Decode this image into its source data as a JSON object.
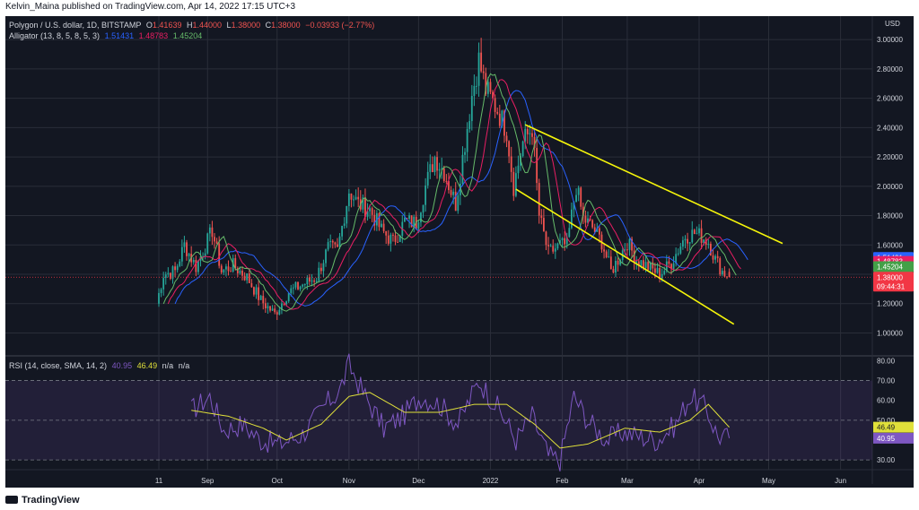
{
  "header": {
    "published": "Kelvin_Maina published on TradingView.com, Apr 14, 2022 17:15 UTC+3"
  },
  "legend": {
    "symbol": "Polygon / U.S. dollar, 1D, BITSTAMP",
    "o_label": "O",
    "o": "1.41639",
    "h_label": "H",
    "h": "1.44000",
    "l_label": "L",
    "l": "1.38000",
    "c_label": "C",
    "c": "1.38000",
    "chg": "−0.03933 (−2.77%)",
    "alligator_label": "Alligator (13, 8, 5, 8, 5, 3)",
    "jaw": "1.51431",
    "teeth": "1.48783",
    "lips": "1.45204"
  },
  "rsi_legend": {
    "label": "RSI (14, close, SMA, 14, 2)",
    "rsi": "40.95",
    "sma": "46.49",
    "na1": "n/a",
    "na2": "n/a"
  },
  "currency": "USD",
  "timer": "09:44:31",
  "footer": {
    "logo_text": "TradingView"
  },
  "colors": {
    "bg": "#131722",
    "up": "#26a69a",
    "down": "#ef5350",
    "jaw": "#2962ff",
    "teeth": "#e91e63",
    "lips": "#66bb6a",
    "rsi": "#7e57c2",
    "rsi_ma": "#e0e03a",
    "channel": "#f5f50a",
    "jaw_badge": "#2962ff",
    "teeth_badge": "#e91e63",
    "lips_badge": "#43a047",
    "price_badge": "#f23645"
  },
  "chart_data": [
    {
      "type": "candlestick",
      "title": "Polygon / U.S. dollar, 1D, BITSTAMP",
      "y_ticks": [
        1.0,
        1.2,
        1.4,
        1.6,
        1.8,
        2.0,
        2.2,
        2.4,
        2.6,
        2.8,
        3.0
      ],
      "y_tick_labels": [
        "1.00000",
        "1.20000",
        "1.40000",
        "1.60000",
        "1.80000",
        "2.00000",
        "2.20000",
        "2.40000",
        "2.60000",
        "2.80000",
        "3.00000"
      ],
      "ylim": [
        0.85,
        3.16
      ],
      "x_tick_labels": [
        {
          "label": "11",
          "date": "2021-08-11"
        },
        {
          "label": "Sep",
          "date": "2021-09-01"
        },
        {
          "label": "Oct",
          "date": "2021-10-01"
        },
        {
          "label": "Nov",
          "date": "2021-11-01"
        },
        {
          "label": "Dec",
          "date": "2021-12-01"
        },
        {
          "label": "2022",
          "date": "2022-01-01"
        },
        {
          "label": "Feb",
          "date": "2022-02-01"
        },
        {
          "label": "Mar",
          "date": "2022-03-01"
        },
        {
          "label": "Apr",
          "date": "2022-04-01"
        },
        {
          "label": "May",
          "date": "2022-05-01"
        },
        {
          "label": "Jun",
          "date": "2022-06-01"
        }
      ],
      "close_anchors": [
        [
          "2021-08-10",
          1.2
        ],
        [
          "2021-08-13",
          1.4
        ],
        [
          "2021-08-18",
          1.42
        ],
        [
          "2021-08-22",
          1.6
        ],
        [
          "2021-08-27",
          1.45
        ],
        [
          "2021-09-03",
          1.7
        ],
        [
          "2021-09-07",
          1.42
        ],
        [
          "2021-09-12",
          1.46
        ],
        [
          "2021-09-18",
          1.38
        ],
        [
          "2021-09-24",
          1.22
        ],
        [
          "2021-09-30",
          1.13
        ],
        [
          "2021-10-06",
          1.28
        ],
        [
          "2021-10-12",
          1.33
        ],
        [
          "2021-10-18",
          1.38
        ],
        [
          "2021-10-23",
          1.58
        ],
        [
          "2021-10-27",
          1.56
        ],
        [
          "2021-11-01",
          1.97
        ],
        [
          "2021-11-05",
          1.88
        ],
        [
          "2021-11-10",
          1.84
        ],
        [
          "2021-11-15",
          1.7
        ],
        [
          "2021-11-20",
          1.62
        ],
        [
          "2021-11-25",
          1.76
        ],
        [
          "2021-11-30",
          1.75
        ],
        [
          "2021-12-04",
          2.0
        ],
        [
          "2021-12-08",
          2.2
        ],
        [
          "2021-12-12",
          2.1
        ],
        [
          "2021-12-17",
          1.88
        ],
        [
          "2021-12-21",
          2.3
        ],
        [
          "2021-12-24",
          2.62
        ],
        [
          "2021-12-27",
          2.86
        ],
        [
          "2021-12-30",
          2.66
        ],
        [
          "2022-01-04",
          2.52
        ],
        [
          "2022-01-08",
          2.38
        ],
        [
          "2022-01-11",
          2.0
        ],
        [
          "2022-01-15",
          2.3
        ],
        [
          "2022-01-19",
          2.4
        ],
        [
          "2022-01-22",
          1.8
        ],
        [
          "2022-01-26",
          1.54
        ],
        [
          "2022-01-31",
          1.6
        ],
        [
          "2022-02-03",
          1.6
        ],
        [
          "2022-02-07",
          2.0
        ],
        [
          "2022-02-10",
          1.78
        ],
        [
          "2022-02-14",
          1.72
        ],
        [
          "2022-02-18",
          1.62
        ],
        [
          "2022-02-22",
          1.42
        ],
        [
          "2022-02-25",
          1.5
        ],
        [
          "2022-03-01",
          1.62
        ],
        [
          "2022-03-05",
          1.5
        ],
        [
          "2022-03-10",
          1.45
        ],
        [
          "2022-03-15",
          1.4
        ],
        [
          "2022-03-20",
          1.48
        ],
        [
          "2022-03-26",
          1.66
        ],
        [
          "2022-03-30",
          1.68
        ],
        [
          "2022-04-02",
          1.66
        ],
        [
          "2022-04-05",
          1.62
        ],
        [
          "2022-04-08",
          1.5
        ],
        [
          "2022-04-11",
          1.42
        ],
        [
          "2022-04-14",
          1.38
        ]
      ],
      "high_mark": {
        "date": "2021-12-27",
        "value": 2.98
      },
      "last_candle": {
        "date": "2022-04-14",
        "open": 1.41639,
        "high": 1.44,
        "low": 1.38,
        "close": 1.38
      },
      "alligator": {
        "jaw": {
          "last": 1.51431
        },
        "teeth": {
          "last": 1.48783
        },
        "lips": {
          "last": 1.45204
        }
      },
      "channel": {
        "upper": [
          [
            "2022-01-16",
            2.42
          ],
          [
            "2022-05-07",
            1.61
          ]
        ],
        "lower": [
          [
            "2022-01-12",
            1.98
          ],
          [
            "2022-04-16",
            1.06
          ]
        ]
      }
    },
    {
      "type": "line",
      "title": "RSI (14, close, SMA, 14, 2)",
      "y_ticks": [
        30,
        40,
        50,
        60,
        70,
        80
      ],
      "y_tick_labels": [
        "30.00",
        "40.00",
        "50.00",
        "60.00",
        "70.00",
        "80.00"
      ],
      "ylim": [
        26,
        82
      ],
      "band": [
        30,
        70
      ],
      "midline": 50,
      "series": [
        {
          "name": "RSI",
          "anchors": [
            [
              "2021-08-25",
              55
            ],
            [
              "2021-09-02",
              62
            ],
            [
              "2021-09-08",
              45
            ],
            [
              "2021-09-16",
              48
            ],
            [
              "2021-09-24",
              40
            ],
            [
              "2021-10-02",
              38
            ],
            [
              "2021-10-12",
              43
            ],
            [
              "2021-10-22",
              58
            ],
            [
              "2021-10-28",
              65
            ],
            [
              "2021-11-01",
              78
            ],
            [
              "2021-11-08",
              62
            ],
            [
              "2021-11-16",
              46
            ],
            [
              "2021-11-24",
              52
            ],
            [
              "2021-12-02",
              62
            ],
            [
              "2021-12-10",
              58
            ],
            [
              "2021-12-18",
              48
            ],
            [
              "2021-12-27",
              70
            ],
            [
              "2022-01-05",
              55
            ],
            [
              "2022-01-12",
              40
            ],
            [
              "2022-01-19",
              52
            ],
            [
              "2022-01-26",
              32
            ],
            [
              "2022-01-31",
              30
            ],
            [
              "2022-02-06",
              62
            ],
            [
              "2022-02-12",
              50
            ],
            [
              "2022-02-20",
              40
            ],
            [
              "2022-02-27",
              44
            ],
            [
              "2022-03-06",
              42
            ],
            [
              "2022-03-14",
              40
            ],
            [
              "2022-03-22",
              48
            ],
            [
              "2022-03-28",
              62
            ],
            [
              "2022-04-04",
              56
            ],
            [
              "2022-04-09",
              42
            ],
            [
              "2022-04-14",
              40.95
            ]
          ],
          "last": 40.95
        },
        {
          "name": "SMA",
          "anchors": [
            [
              "2021-08-25",
              55
            ],
            [
              "2021-09-10",
              52
            ],
            [
              "2021-09-25",
              46
            ],
            [
              "2021-10-05",
              40
            ],
            [
              "2021-10-20",
              48
            ],
            [
              "2021-11-01",
              62
            ],
            [
              "2021-11-10",
              64
            ],
            [
              "2021-11-25",
              54
            ],
            [
              "2021-12-10",
              54
            ],
            [
              "2021-12-25",
              58
            ],
            [
              "2022-01-08",
              58
            ],
            [
              "2022-01-20",
              48
            ],
            [
              "2022-01-31",
              36
            ],
            [
              "2022-02-12",
              38
            ],
            [
              "2022-02-28",
              46
            ],
            [
              "2022-03-15",
              44
            ],
            [
              "2022-03-28",
              50
            ],
            [
              "2022-04-05",
              58
            ],
            [
              "2022-04-14",
              46.49
            ]
          ],
          "last": 46.49
        }
      ]
    }
  ]
}
